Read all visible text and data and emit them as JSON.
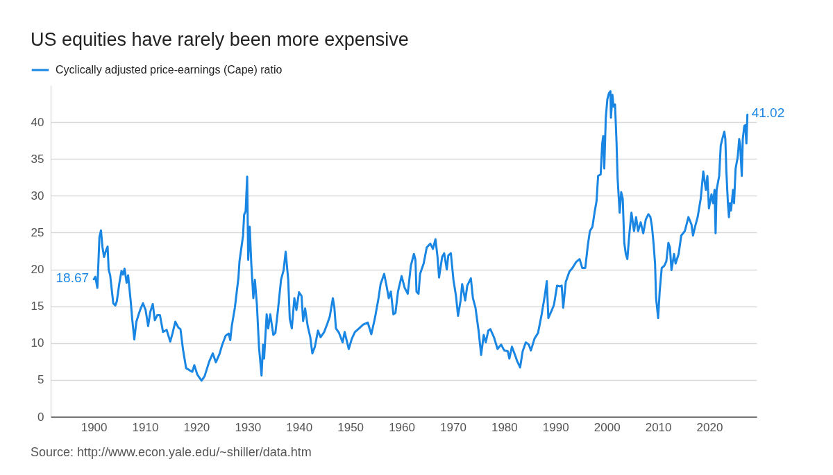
{
  "chart_data": {
    "type": "line",
    "title": "US equities have rarely been more expensive",
    "annotations": [
      "Source: http://www.econ.yale.edu/~shiller/data.htm",
      {
        "text": "18.67",
        "x": 1900.0,
        "y": 18.67
      },
      {
        "text": "41.02",
        "x": 2027.4,
        "y": 41.02
      }
    ],
    "x": [
      1900.0,
      1900.3,
      1900.7,
      1900.9,
      1901.1,
      1901.4,
      1901.7,
      1902.0,
      1902.4,
      1902.7,
      1902.9,
      1903.2,
      1903.8,
      1904.2,
      1904.5,
      1905.0,
      1905.4,
      1905.7,
      1906.0,
      1906.4,
      1906.7,
      1907.2,
      1907.5,
      1907.9,
      1908.3,
      1908.8,
      1909.2,
      1909.6,
      1910.1,
      1910.6,
      1911.0,
      1911.5,
      1911.9,
      1912.4,
      1912.9,
      1913.5,
      1914.2,
      1914.9,
      1915.3,
      1915.9,
      1916.5,
      1916.9,
      1917.4,
      1918.0,
      1918.7,
      1919.2,
      1919.6,
      1920.2,
      1921.0,
      1921.6,
      1922.5,
      1923.2,
      1923.8,
      1924.5,
      1925.0,
      1925.7,
      1926.3,
      1926.6,
      1926.9,
      1927.5,
      1928.2,
      1928.4,
      1929.1,
      1929.3,
      1929.6,
      1929.9,
      1930.1,
      1930.4,
      1930.7,
      1931.1,
      1931.4,
      1931.8,
      1932.2,
      1932.7,
      1933.0,
      1933.2,
      1933.7,
      1934.0,
      1934.4,
      1935.0,
      1935.4,
      1935.9,
      1936.5,
      1937.0,
      1937.4,
      1937.9,
      1938.2,
      1938.6,
      1939.1,
      1939.5,
      1940.0,
      1940.5,
      1940.8,
      1941.2,
      1941.7,
      1942.2,
      1942.6,
      1943.1,
      1943.7,
      1944.2,
      1944.9,
      1945.5,
      1946.0,
      1946.6,
      1946.9,
      1947.2,
      1947.8,
      1948.5,
      1948.9,
      1949.7,
      1950.3,
      1950.9,
      1951.7,
      1952.5,
      1953.4,
      1954.1,
      1954.8,
      1955.5,
      1955.9,
      1956.6,
      1957.0,
      1957.5,
      1957.9,
      1958.4,
      1958.8,
      1959.3,
      1960.0,
      1960.6,
      1961.2,
      1961.8,
      1962.4,
      1962.7,
      1962.9,
      1963.3,
      1963.6,
      1964.3,
      1964.9,
      1965.6,
      1966.1,
      1966.6,
      1967.0,
      1967.3,
      1967.9,
      1968.3,
      1968.8,
      1969.1,
      1969.6,
      1970.1,
      1970.6,
      1971.0,
      1971.5,
      1971.8,
      1972.4,
      1972.8,
      1973.5,
      1973.9,
      1974.4,
      1975.0,
      1975.5,
      1976.0,
      1976.4,
      1976.9,
      1977.3,
      1978.0,
      1978.7,
      1979.4,
      1980.0,
      1980.7,
      1981.0,
      1981.5,
      1982.1,
      1982.5,
      1983.1,
      1983.6,
      1984.2,
      1984.8,
      1985.2,
      1985.9,
      1986.6,
      1987.3,
      1987.9,
      1988.3,
      1988.6,
      1989.3,
      1989.7,
      1990.3,
      1990.9,
      1991.2,
      1991.5,
      1992.0,
      1992.7,
      1993.3,
      1994.0,
      1994.7,
      1995.2,
      1995.8,
      1996.3,
      1996.7,
      1997.2,
      1997.6,
      1998.0,
      1998.3,
      1998.8,
      1999.1,
      1999.3,
      1999.5,
      1999.8,
      2000.1,
      2000.4,
      2000.7,
      2000.8,
      2001.1,
      2001.3,
      2001.6,
      2001.9,
      2002.1,
      2002.5,
      2002.8,
      2003.1,
      2003.4,
      2003.7,
      2004.0,
      2004.4,
      2004.8,
      2005.3,
      2005.7,
      2006.1,
      2006.6,
      2007.1,
      2007.6,
      2008.1,
      2008.5,
      2008.8,
      2009.1,
      2009.4,
      2009.6,
      2010.0,
      2010.3,
      2010.7,
      2011.2,
      2011.6,
      2012.0,
      2012.3,
      2012.6,
      2013.1,
      2013.4,
      2014.0,
      2014.5,
      2015.2,
      2015.9,
      2016.5,
      2016.8,
      2017.2,
      2017.7,
      2018.3,
      2018.8,
      2019.3,
      2019.6,
      2019.9,
      2020.4,
      2020.7,
      2021.0,
      2021.2,
      2021.4,
      2021.9,
      2022.2,
      2022.5,
      2022.9,
      2023.1,
      2023.3,
      2023.6,
      2023.8,
      2024.0,
      2024.2,
      2024.6,
      2024.8,
      2025.1,
      2025.5,
      2025.8,
      2026.0,
      2026.3,
      2026.5,
      2026.8,
      2027.0,
      2027.2,
      2027.4
    ],
    "series": [
      {
        "name": "Cyclically adjusted price-earnings (Cape) ratio",
        "color": "#1a86e3",
        "values": [
          18.67,
          19.0,
          17.5,
          20.8,
          24.4,
          25.3,
          23.0,
          21.7,
          22.6,
          23.1,
          20.0,
          19.2,
          15.4,
          15.1,
          15.7,
          18.2,
          19.8,
          19.3,
          20.1,
          18.2,
          19.2,
          15.7,
          13.2,
          10.5,
          12.9,
          14.0,
          14.8,
          15.4,
          14.5,
          12.3,
          14.2,
          15.3,
          13.1,
          13.8,
          13.8,
          11.5,
          11.8,
          10.2,
          11.2,
          12.9,
          12.1,
          11.9,
          9.1,
          6.6,
          6.3,
          6.1,
          7.0,
          5.7,
          4.9,
          5.5,
          7.5,
          8.6,
          7.4,
          8.5,
          9.7,
          11.0,
          11.3,
          10.4,
          12.3,
          14.8,
          18.9,
          21.1,
          24.6,
          27.4,
          27.9,
          32.6,
          21.3,
          25.8,
          20.8,
          16.1,
          18.6,
          15.2,
          9.5,
          5.6,
          9.8,
          7.9,
          13.9,
          12.0,
          13.9,
          11.1,
          11.4,
          14.5,
          18.6,
          19.9,
          22.4,
          18.6,
          13.3,
          12.0,
          16.1,
          14.5,
          16.9,
          16.4,
          13.0,
          14.7,
          12.3,
          10.8,
          8.6,
          9.5,
          11.7,
          10.8,
          11.5,
          12.6,
          13.6,
          16.1,
          14.8,
          12.0,
          11.4,
          10.1,
          11.5,
          9.2,
          10.6,
          11.5,
          12.0,
          12.5,
          12.8,
          11.2,
          13.4,
          16.1,
          18.0,
          19.4,
          18.0,
          16.1,
          17.0,
          13.9,
          14.1,
          17.0,
          19.1,
          17.5,
          16.7,
          20.5,
          22.1,
          21.3,
          17.0,
          16.7,
          19.4,
          20.8,
          23.0,
          23.5,
          22.8,
          24.1,
          21.7,
          18.9,
          21.7,
          22.2,
          20.0,
          21.9,
          22.2,
          18.6,
          16.4,
          13.7,
          15.8,
          18.0,
          15.8,
          17.8,
          18.8,
          16.1,
          14.8,
          11.7,
          8.4,
          11.1,
          10.1,
          11.7,
          11.9,
          10.8,
          9.2,
          9.8,
          9.0,
          8.9,
          7.9,
          9.5,
          8.4,
          7.6,
          6.7,
          8.9,
          10.1,
          9.8,
          9.0,
          10.6,
          11.4,
          13.9,
          16.4,
          18.4,
          13.4,
          14.5,
          15.2,
          17.8,
          17.7,
          17.8,
          14.8,
          18.3,
          19.7,
          20.2,
          21.0,
          21.4,
          20.2,
          20.2,
          23.3,
          25.2,
          25.8,
          27.7,
          29.3,
          32.7,
          32.9,
          37.1,
          38.1,
          33.7,
          40.6,
          43.1,
          43.9,
          44.2,
          40.6,
          43.7,
          42.1,
          42.4,
          37.1,
          32.4,
          27.7,
          30.5,
          29.6,
          23.6,
          22.1,
          21.4,
          24.9,
          27.7,
          25.2,
          27.1,
          25.2,
          26.4,
          24.9,
          26.8,
          27.5,
          27.1,
          25.8,
          23.6,
          20.8,
          16.1,
          13.4,
          17.0,
          20.2,
          20.5,
          21.1,
          23.6,
          23.0,
          19.9,
          22.1,
          20.8,
          22.1,
          24.6,
          25.2,
          27.1,
          26.1,
          24.6,
          25.8,
          27.1,
          29.6,
          33.3,
          30.8,
          32.7,
          28.3,
          30.2,
          29.0,
          30.8,
          24.9,
          30.8,
          32.7,
          36.8,
          37.7,
          38.7,
          37.7,
          33.3,
          29.0,
          27.1,
          29.0,
          28.0,
          30.8,
          29.0,
          33.7,
          35.2,
          37.7,
          36.8,
          32.7,
          37.7,
          39.5,
          39.6,
          37.1,
          41.02
        ]
      }
    ],
    "xlim": [
      1891.6,
      2029.2
    ],
    "ylim": [
      0,
      45
    ],
    "xticks": [
      1900,
      1910,
      1920,
      1930,
      1940,
      1950,
      1960,
      1970,
      1980,
      1990,
      2000,
      2010,
      2020
    ],
    "yticks": [
      0,
      5,
      10,
      15,
      20,
      25,
      30,
      35,
      40
    ],
    "grid": "y",
    "legend": "top left",
    "line_style": "solid"
  }
}
